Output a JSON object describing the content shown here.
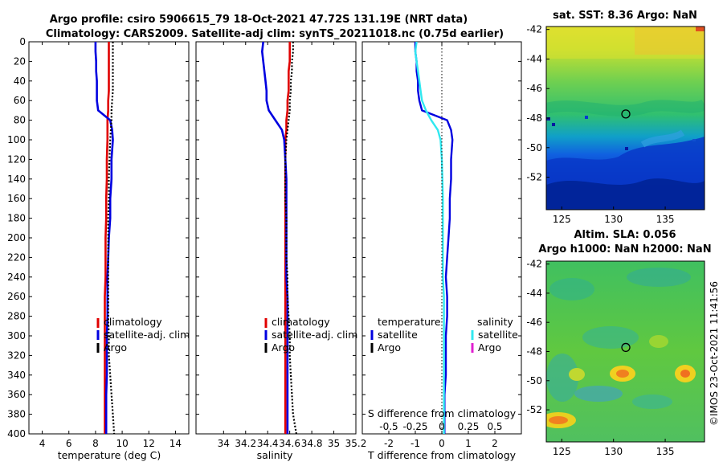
{
  "titles": {
    "line1": "Argo profile: csiro 5906615_79 18-Oct-2021 47.72S 131.19E (NRT data)",
    "line2": "Climatology: CARS2009. Satellite-adj clim: synTS_20211018.nc (0.75d earlier)",
    "sst": "sat. SST: 8.36 Argo: NaN",
    "sla1": "Altim. SLA: 0.056",
    "sla2": "Argo h1000: NaN h2000: NaN",
    "stamp": "©IMOS 23-Oct-2021 11:41:56"
  },
  "colors": {
    "clim": "#e00000",
    "sat": "#0000e0",
    "argo": "#000000",
    "sat_s": "#30e8f0",
    "argo_s": "#e020d0"
  },
  "legend": {
    "clim": "climatology",
    "sat": "satellite-adj. clim",
    "argo": "Argo",
    "diff_t_head": "temperature",
    "diff_s_head": "salinity",
    "satellite": "satellite",
    "argo2": "Argo"
  },
  "chart_data": [
    {
      "type": "line",
      "id": "temperature",
      "xlabel": "temperature (deg C)",
      "ylabel": "",
      "xlim": [
        3,
        15
      ],
      "ylim": [
        0,
        400
      ],
      "xticks": [
        4,
        6,
        8,
        10,
        12,
        14
      ],
      "yticks": [
        0,
        20,
        40,
        60,
        80,
        100,
        120,
        140,
        160,
        180,
        200,
        220,
        240,
        260,
        280,
        300,
        320,
        340,
        360,
        380,
        400
      ],
      "y": [
        0,
        10,
        20,
        30,
        40,
        50,
        60,
        70,
        80,
        90,
        100,
        120,
        140,
        160,
        180,
        200,
        220,
        240,
        260,
        280,
        300,
        320,
        340,
        360,
        380,
        400
      ],
      "series": [
        {
          "name": "climatology",
          "style": "solid",
          "values": [
            9.0,
            9.0,
            9.0,
            9.0,
            9.0,
            9.0,
            8.95,
            8.95,
            8.9,
            8.9,
            8.9,
            8.85,
            8.85,
            8.8,
            8.8,
            8.75,
            8.75,
            8.75,
            8.7,
            8.7,
            8.7,
            8.7,
            8.7,
            8.7,
            8.7,
            8.7
          ]
        },
        {
          "name": "satellite-adj. clim",
          "style": "solid",
          "values": [
            8.0,
            8.0,
            8.05,
            8.05,
            8.1,
            8.1,
            8.1,
            8.2,
            9.1,
            9.25,
            9.3,
            9.2,
            9.2,
            9.1,
            9.1,
            9.0,
            8.95,
            8.9,
            8.9,
            8.9,
            8.85,
            8.85,
            8.85,
            8.8,
            8.8,
            8.8
          ]
        },
        {
          "name": "Argo",
          "style": "dotted",
          "values": [
            9.3,
            9.3,
            9.3,
            9.3,
            9.3,
            9.3,
            9.25,
            9.2,
            9.2,
            9.15,
            9.1,
            9.05,
            9.0,
            9.0,
            8.95,
            8.95,
            8.95,
            8.95,
            8.95,
            8.95,
            9.0,
            9.0,
            9.1,
            9.2,
            9.3,
            9.4
          ]
        }
      ]
    },
    {
      "type": "line",
      "id": "salinity",
      "xlabel": "salinity",
      "xlim": [
        33.75,
        35.2
      ],
      "ylim": [
        0,
        400
      ],
      "xticks": [
        34,
        34.2,
        34.4,
        34.6,
        34.8,
        35,
        35.2
      ],
      "y": [
        0,
        10,
        20,
        30,
        40,
        50,
        60,
        70,
        80,
        90,
        100,
        120,
        140,
        160,
        180,
        200,
        220,
        240,
        260,
        280,
        300,
        320,
        340,
        360,
        380,
        400
      ],
      "series": [
        {
          "name": "climatology",
          "style": "solid",
          "values": [
            34.6,
            34.6,
            34.6,
            34.59,
            34.59,
            34.59,
            34.58,
            34.58,
            34.57,
            34.57,
            34.56,
            34.56,
            34.56,
            34.56,
            34.56,
            34.56,
            34.56,
            34.56,
            34.56,
            34.56,
            34.56,
            34.56,
            34.56,
            34.56,
            34.56,
            34.56
          ]
        },
        {
          "name": "satellite-adj. clim",
          "style": "solid",
          "values": [
            34.36,
            34.35,
            34.36,
            34.37,
            34.38,
            34.39,
            34.39,
            34.41,
            34.47,
            34.53,
            34.55,
            34.56,
            34.57,
            34.57,
            34.57,
            34.57,
            34.57,
            34.57,
            34.58,
            34.58,
            34.58,
            34.58,
            34.58,
            34.58,
            34.58,
            34.58
          ]
        },
        {
          "name": "Argo",
          "style": "dotted",
          "values": [
            34.63,
            34.63,
            34.62,
            34.62,
            34.61,
            34.61,
            34.6,
            34.6,
            34.59,
            34.58,
            34.57,
            34.56,
            34.56,
            34.56,
            34.57,
            34.57,
            34.57,
            34.58,
            34.58,
            34.59,
            34.6,
            34.6,
            34.61,
            34.62,
            34.63,
            34.66
          ]
        }
      ]
    },
    {
      "type": "line",
      "id": "difference",
      "xlabel": "T difference from climatology",
      "xlabel_top": "S difference from climatology",
      "xlim": [
        -3,
        3
      ],
      "ylim": [
        0,
        400
      ],
      "xticks": [
        -2,
        -1,
        0,
        1,
        2
      ],
      "xticks_top": [
        "-0.5",
        "-0.25",
        "0",
        "0.25",
        "0.5"
      ],
      "xticks_top_pos": [
        -2,
        -1,
        0,
        1,
        2
      ],
      "y": [
        0,
        10,
        20,
        30,
        40,
        50,
        60,
        70,
        80,
        90,
        100,
        120,
        140,
        160,
        180,
        200,
        220,
        240,
        260,
        280,
        300,
        320,
        340,
        360,
        380,
        400
      ],
      "series": [
        {
          "name": "temperature satellite",
          "style": "solid",
          "values": [
            -1.0,
            -1.0,
            -0.95,
            -0.95,
            -0.9,
            -0.9,
            -0.85,
            -0.75,
            0.2,
            0.35,
            0.4,
            0.35,
            0.35,
            0.3,
            0.3,
            0.25,
            0.2,
            0.15,
            0.2,
            0.2,
            0.15,
            0.15,
            0.15,
            0.1,
            0.1,
            0.1
          ]
        },
        {
          "name": "salinity satellite",
          "style": "solid",
          "values": [
            -0.95,
            -1.0,
            -0.95,
            -0.9,
            -0.85,
            -0.8,
            -0.75,
            -0.6,
            -0.4,
            -0.15,
            -0.05,
            0.0,
            0.02,
            0.04,
            0.04,
            0.04,
            0.04,
            0.04,
            0.08,
            0.08,
            0.08,
            0.08,
            0.08,
            0.08,
            0.08,
            0.08
          ]
        },
        {
          "name": "zero line",
          "style": "dotted",
          "values": [
            0,
            0
          ]
        }
      ]
    },
    {
      "type": "heatmap",
      "id": "sst_map",
      "title": "sat. SST: 8.36 Argo: NaN",
      "xlim": [
        123.5,
        138.8
      ],
      "ylim": [
        -54.2,
        -41.8
      ],
      "xticks": [
        125,
        130,
        135
      ],
      "yticks": [
        -42,
        -44,
        -46,
        -48,
        -50,
        -52
      ],
      "marker": {
        "lon": 131.19,
        "lat": -47.72
      }
    },
    {
      "type": "heatmap",
      "id": "sla_map",
      "title": "Altim. SLA: 0.056",
      "xlim": [
        123.5,
        138.8
      ],
      "ylim": [
        -54.2,
        -41.8
      ],
      "xticks": [
        125,
        130,
        135
      ],
      "yticks": [
        -42,
        -44,
        -46,
        -48,
        -50,
        -52
      ],
      "marker": {
        "lon": 131.19,
        "lat": -47.72
      }
    }
  ]
}
